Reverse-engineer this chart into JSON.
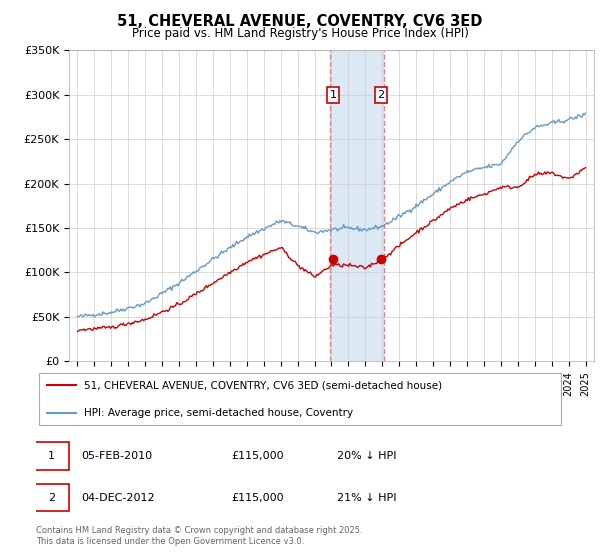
{
  "title": "51, CHEVERAL AVENUE, COVENTRY, CV6 3ED",
  "subtitle": "Price paid vs. HM Land Registry's House Price Index (HPI)",
  "ylim": [
    0,
    350000
  ],
  "yticks": [
    0,
    50000,
    100000,
    150000,
    200000,
    250000,
    300000,
    350000
  ],
  "ytick_labels": [
    "£0",
    "£50K",
    "£100K",
    "£150K",
    "£200K",
    "£250K",
    "£300K",
    "£350K"
  ],
  "xlim_start": 1994.5,
  "xlim_end": 2025.5,
  "shade_x1": 2009.9,
  "shade_x2": 2013.1,
  "marker1_x": 2010.08,
  "marker1_y": 115000,
  "marker2_x": 2012.92,
  "marker2_y": 115000,
  "legend_line1": "51, CHEVERAL AVENUE, COVENTRY, CV6 3ED (semi-detached house)",
  "legend_line2": "HPI: Average price, semi-detached house, Coventry",
  "legend_line1_color": "#cc0000",
  "legend_line2_color": "#6699cc",
  "table_data": [
    {
      "num": "1",
      "date": "05-FEB-2010",
      "price": "£115,000",
      "hpi": "20% ↓ HPI"
    },
    {
      "num": "2",
      "date": "04-DEC-2012",
      "price": "£115,000",
      "hpi": "21% ↓ HPI"
    }
  ],
  "footnote": "Contains HM Land Registry data © Crown copyright and database right 2025.\nThis data is licensed under the Open Government Licence v3.0.",
  "bg_color": "#ffffff",
  "grid_color": "#cccccc",
  "shade_color": "#dce9f5",
  "shade_border_color": "#dd8888",
  "hpi_waypoints_x": [
    1995,
    1997,
    1999,
    2001,
    2003,
    2005,
    2007,
    2008,
    2009,
    2010,
    2011,
    2012,
    2013,
    2014,
    2015,
    2016,
    2017,
    2018,
    2019,
    2020,
    2021,
    2022,
    2023,
    2024,
    2025
  ],
  "hpi_waypoints_y": [
    50000,
    55000,
    65000,
    88000,
    115000,
    140000,
    158000,
    152000,
    145000,
    148000,
    150000,
    148000,
    152000,
    163000,
    175000,
    188000,
    202000,
    213000,
    218000,
    222000,
    248000,
    263000,
    268000,
    272000,
    278000
  ],
  "price_waypoints_x": [
    1995,
    1997,
    1999,
    2001,
    2003,
    2005,
    2007,
    2008,
    2009,
    2010,
    2011,
    2012,
    2013,
    2014,
    2015,
    2016,
    2017,
    2018,
    2019,
    2020,
    2021,
    2022,
    2023,
    2024,
    2025
  ],
  "price_waypoints_y": [
    35000,
    38000,
    47000,
    64000,
    88000,
    112000,
    128000,
    108000,
    95000,
    108000,
    108000,
    105000,
    115000,
    130000,
    145000,
    158000,
    172000,
    182000,
    188000,
    196000,
    196000,
    210000,
    212000,
    205000,
    218000
  ]
}
